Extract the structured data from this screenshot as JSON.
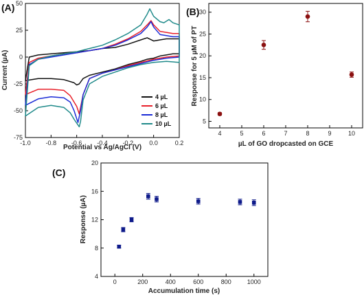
{
  "chart_data": [
    {
      "panel": "(A)",
      "type": "line",
      "title": "",
      "xlabel": "Potential vs Ag/AgCl (V)",
      "ylabel": "Current (µA)",
      "xlim": [
        -1.0,
        0.2
      ],
      "ylim": [
        -75,
        50
      ],
      "xticks": [
        "-1.0",
        "-0.8",
        "-0.6",
        "-0.4",
        "-0.2",
        "0.0",
        "0.2"
      ],
      "yticks": [
        "50",
        "25",
        "0",
        "-25",
        "-50",
        "-75"
      ],
      "legend_position": "bottom-right",
      "series": [
        {
          "name": "4 µL",
          "color": "#111111",
          "x": [
            -1.0,
            -0.9,
            -0.8,
            -0.7,
            -0.62,
            -0.6,
            -0.58,
            -0.55,
            -0.5,
            -0.4,
            -0.3,
            -0.2,
            -0.1,
            -0.05,
            0.0,
            0.05,
            0.1,
            0.15,
            0.2,
            0.2,
            0.15,
            0.1,
            0.05,
            0.0,
            -0.05,
            -0.1,
            -0.2,
            -0.3,
            -0.4,
            -0.5,
            -0.6,
            -0.7,
            -0.8,
            -0.9,
            -0.97,
            -1.0
          ],
          "y": [
            -22,
            -20,
            -20,
            -21,
            -24,
            -26,
            -25,
            -20,
            -17,
            -14,
            -11,
            -7,
            -4,
            -2,
            -1,
            1,
            2,
            3,
            3,
            17,
            17,
            17,
            16,
            15,
            18,
            16,
            12,
            9,
            8,
            6,
            5,
            4,
            3,
            2,
            0,
            -22
          ]
        },
        {
          "name": "6 µL",
          "color": "#e8202a",
          "x": [
            -1.0,
            -0.9,
            -0.8,
            -0.7,
            -0.65,
            -0.6,
            -0.58,
            -0.55,
            -0.5,
            -0.4,
            -0.3,
            -0.2,
            -0.1,
            0.0,
            0.1,
            0.2,
            0.2,
            0.15,
            0.1,
            0.05,
            0.0,
            -0.02,
            -0.05,
            -0.1,
            -0.2,
            -0.3,
            -0.4,
            -0.5,
            -0.6,
            -0.7,
            -0.8,
            -0.9,
            -0.97,
            -1.0
          ],
          "y": [
            -35,
            -30,
            -30,
            -31,
            -36,
            -46,
            -53,
            -35,
            -20,
            -15,
            -12,
            -8,
            -5,
            -2,
            0,
            1,
            22,
            22,
            23,
            24,
            30,
            34,
            30,
            24,
            17,
            12,
            8,
            6,
            4,
            3,
            1,
            -1,
            -5,
            -35
          ]
        },
        {
          "name": "8 µL",
          "color": "#1a2bd6",
          "x": [
            -1.0,
            -0.9,
            -0.8,
            -0.7,
            -0.65,
            -0.62,
            -0.59,
            -0.57,
            -0.55,
            -0.5,
            -0.4,
            -0.3,
            -0.2,
            -0.1,
            0.0,
            0.1,
            0.2,
            0.2,
            0.15,
            0.1,
            0.05,
            0.0,
            -0.02,
            -0.05,
            -0.1,
            -0.2,
            -0.3,
            -0.4,
            -0.5,
            -0.6,
            -0.7,
            -0.8,
            -0.9,
            -0.97,
            -1.0
          ],
          "y": [
            -45,
            -39,
            -37,
            -38,
            -42,
            -50,
            -61,
            -50,
            -35,
            -20,
            -15,
            -12,
            -9,
            -6,
            -3,
            -1,
            0,
            19,
            19,
            20,
            21,
            28,
            33,
            28,
            22,
            16,
            11,
            8,
            6,
            4,
            2,
            0,
            -2,
            -7,
            -45
          ]
        },
        {
          "name": "10 µL",
          "color": "#1f8a8a",
          "x": [
            -1.0,
            -0.9,
            -0.8,
            -0.7,
            -0.65,
            -0.62,
            -0.58,
            -0.57,
            -0.55,
            -0.5,
            -0.4,
            -0.3,
            -0.2,
            -0.1,
            0.0,
            0.1,
            0.2,
            0.2,
            0.15,
            0.12,
            0.08,
            0.05,
            0.0,
            -0.03,
            -0.05,
            -0.1,
            -0.2,
            -0.3,
            -0.4,
            -0.5,
            -0.6,
            -0.7,
            -0.8,
            -0.9,
            -0.97,
            -1.0
          ],
          "y": [
            -55,
            -47,
            -45,
            -47,
            -52,
            -58,
            -65,
            -60,
            -40,
            -25,
            -18,
            -14,
            -10,
            -7,
            -5,
            -4,
            -5,
            30,
            32,
            35,
            32,
            33,
            38,
            45,
            40,
            30,
            22,
            16,
            11,
            8,
            5,
            3,
            1,
            -2,
            -8,
            -55
          ]
        }
      ]
    },
    {
      "panel": "(B)",
      "type": "scatter",
      "title": "",
      "xlabel": "µL of GO dropcasted on GCE",
      "ylabel": "Response for 5 µM of PT",
      "xlim": [
        3.5,
        10.5
      ],
      "ylim": [
        3.5,
        32
      ],
      "xticks": [
        "4",
        "5",
        "6",
        "7",
        "8",
        "9",
        "10"
      ],
      "yticks": [
        "5",
        "10",
        "15",
        "20",
        "25",
        "30"
      ],
      "color": "#8b1010",
      "x": [
        4,
        6,
        8,
        10
      ],
      "y": [
        6.7,
        22.5,
        29.0,
        15.7
      ],
      "yerr": [
        0.3,
        1.0,
        1.2,
        0.6
      ]
    },
    {
      "panel": "(C)",
      "type": "scatter",
      "title": "",
      "xlabel": "Accumulation time (s)",
      "ylabel": "Response (µA)",
      "xlim": [
        -100,
        1100
      ],
      "ylim": [
        4,
        20
      ],
      "xticks": [
        "0",
        "200",
        "400",
        "600",
        "800",
        "1000"
      ],
      "yticks": [
        "4",
        "8",
        "12",
        "16",
        "20"
      ],
      "color": "#0e1a8a",
      "x": [
        30,
        60,
        120,
        240,
        300,
        600,
        900,
        1000
      ],
      "y": [
        8.2,
        10.6,
        12.0,
        15.3,
        14.9,
        14.6,
        14.5,
        14.4
      ],
      "yerr": [
        0.2,
        0.3,
        0.3,
        0.4,
        0.4,
        0.4,
        0.4,
        0.4
      ]
    }
  ]
}
